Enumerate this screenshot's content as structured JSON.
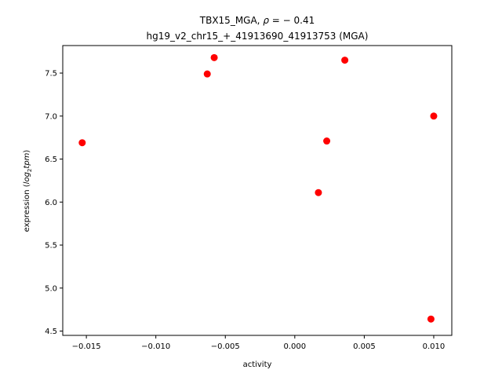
{
  "chart_data": {
    "type": "scatter",
    "title_line1_prefix": "TBX15_MGA, ",
    "title_line1_rho": "ρ",
    "title_line1_suffix": " = − 0.41",
    "title_line2": "hg19_v2_chr15_+_41913690_41913753 (MGA)",
    "xlabel": "activity",
    "ylabel_prefix": "expression (",
    "ylabel_log": "log",
    "ylabel_sub": "2",
    "ylabel_tpm": "tpm",
    "ylabel_suffix": ")",
    "xlim": [
      -0.0167,
      0.0113
    ],
    "ylim": [
      4.45,
      7.82
    ],
    "x_ticks": [
      -0.015,
      -0.01,
      -0.005,
      0.0,
      0.005,
      0.01
    ],
    "x_tick_labels": [
      "−0.015",
      "−0.010",
      "−0.005",
      "0.000",
      "0.005",
      "0.010"
    ],
    "y_ticks": [
      4.5,
      5.0,
      5.5,
      6.0,
      6.5,
      7.0,
      7.5
    ],
    "y_tick_labels": [
      "4.5",
      "5.0",
      "5.5",
      "6.0",
      "6.5",
      "7.0",
      "7.5"
    ],
    "marker_color": "#ff0000",
    "grid": false,
    "points": [
      {
        "x": -0.0153,
        "y": 6.69
      },
      {
        "x": -0.0063,
        "y": 7.49
      },
      {
        "x": -0.0058,
        "y": 7.68
      },
      {
        "x": 0.0017,
        "y": 6.11
      },
      {
        "x": 0.0023,
        "y": 6.71
      },
      {
        "x": 0.0036,
        "y": 7.65
      },
      {
        "x": 0.0098,
        "y": 4.64
      },
      {
        "x": 0.01,
        "y": 7.0
      }
    ]
  }
}
